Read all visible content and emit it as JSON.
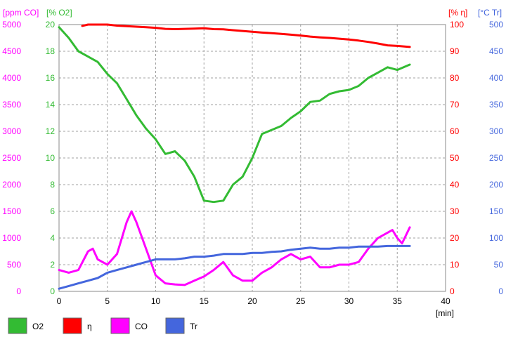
{
  "chart_data": {
    "type": "line",
    "xlabel": "[min]",
    "xlim": [
      0,
      40
    ],
    "x_ticks": [
      0,
      5,
      10,
      15,
      20,
      25,
      30,
      35,
      40
    ],
    "grid": true,
    "legend_placement": "bottom",
    "axes": [
      {
        "id": "co",
        "label": "[ppm CO]",
        "color": "#ff00ff",
        "side": "left-outer",
        "min": 0,
        "max": 5000,
        "ticks": [
          "0",
          "500",
          "1000",
          "1500",
          "2000",
          "2500",
          "3000",
          "3500",
          "4000",
          "4500",
          "5000"
        ]
      },
      {
        "id": "o2",
        "label": "[% O2]",
        "color": "#33bb33",
        "side": "left-inner",
        "min": 0,
        "max": 20,
        "ticks": [
          "0",
          "2",
          "4",
          "6",
          "8",
          "10",
          "12",
          "14",
          "16",
          "18",
          "20"
        ]
      },
      {
        "id": "eta",
        "label": "[% η]",
        "color": "#ff0000",
        "side": "right-inner",
        "min": 0,
        "max": 100,
        "ticks": [
          "0",
          "10",
          "20",
          "30",
          "40",
          "50",
          "60",
          "70",
          "80",
          "90",
          "100"
        ]
      },
      {
        "id": "tr",
        "label": "[°C Tr]",
        "color": "#4466dd",
        "side": "right-outer",
        "min": 0,
        "max": 500,
        "ticks": [
          "0",
          "50",
          "100",
          "150",
          "200",
          "250",
          "300",
          "350",
          "400",
          "450",
          "500"
        ]
      }
    ],
    "series": [
      {
        "name": "O2",
        "axis": "o2",
        "color": "#33bb33",
        "x": [
          0,
          1,
          2,
          3,
          4,
          5,
          6,
          7,
          8,
          9,
          10,
          11,
          12,
          13,
          14,
          15,
          16,
          17,
          18,
          19,
          20,
          21,
          22,
          23,
          24,
          25,
          26,
          27,
          28,
          29,
          30,
          31,
          32,
          33,
          34,
          35,
          36.3
        ],
        "y": [
          19.8,
          19.0,
          18.0,
          17.6,
          17.2,
          16.3,
          15.6,
          14.4,
          13.2,
          12.2,
          11.4,
          10.3,
          10.5,
          9.8,
          8.6,
          6.8,
          6.7,
          6.8,
          8.0,
          8.6,
          10.0,
          11.8,
          12.1,
          12.4,
          13.0,
          13.5,
          14.2,
          14.3,
          14.8,
          15.0,
          15.1,
          15.4,
          16.0,
          16.4,
          16.8,
          16.6,
          17.0
        ]
      },
      {
        "name": "η",
        "axis": "eta",
        "color": "#ff0000",
        "x": [
          2.4,
          3,
          4,
          5,
          6,
          7,
          8,
          9,
          10,
          11,
          12,
          13,
          14,
          15,
          16,
          17,
          18,
          19,
          20,
          21,
          22,
          23,
          24,
          25,
          26,
          27,
          28,
          29,
          30,
          31,
          32,
          33,
          34,
          35,
          36.3
        ],
        "y": [
          99.5,
          100,
          100,
          100,
          99.6,
          99.4,
          99.2,
          99.0,
          98.8,
          98.4,
          98.3,
          98.4,
          98.5,
          98.6,
          98.3,
          98.2,
          97.9,
          97.6,
          97.3,
          97.0,
          96.8,
          96.5,
          96.2,
          95.9,
          95.5,
          95.2,
          95.0,
          94.7,
          94.4,
          94.0,
          93.5,
          92.9,
          92.2,
          92.0,
          91.6
        ]
      },
      {
        "name": "CO",
        "axis": "co",
        "color": "#ff00ff",
        "x": [
          0,
          1,
          2,
          3,
          3.5,
          4,
          5,
          6,
          7,
          7.5,
          8,
          9,
          10,
          11,
          12,
          13,
          14,
          15,
          16,
          17,
          18,
          19,
          20,
          21,
          22,
          23,
          24,
          25,
          26,
          27,
          28,
          29,
          30,
          31,
          32,
          33,
          34,
          34.5,
          35,
          35.5,
          36.3
        ],
        "y": [
          400,
          350,
          400,
          750,
          800,
          600,
          500,
          700,
          1300,
          1500,
          1300,
          800,
          300,
          150,
          130,
          120,
          200,
          280,
          400,
          550,
          300,
          200,
          200,
          350,
          450,
          600,
          700,
          600,
          650,
          450,
          450,
          500,
          500,
          550,
          800,
          1000,
          1100,
          1150,
          1000,
          900,
          1200
        ]
      },
      {
        "name": "Tr",
        "axis": "tr",
        "color": "#4466dd",
        "x": [
          0,
          1,
          2,
          3,
          4,
          5,
          6,
          7,
          8,
          9,
          10,
          11,
          12,
          13,
          14,
          15,
          16,
          17,
          18,
          19,
          20,
          21,
          22,
          23,
          24,
          25,
          26,
          27,
          28,
          29,
          30,
          31,
          32,
          33,
          34,
          35,
          36.3
        ],
        "y": [
          5,
          10,
          15,
          20,
          25,
          35,
          40,
          45,
          50,
          55,
          60,
          60,
          60,
          62,
          65,
          65,
          67,
          70,
          70,
          70,
          72,
          72,
          74,
          75,
          78,
          80,
          82,
          80,
          80,
          82,
          82,
          84,
          84,
          84,
          85,
          85,
          85
        ]
      }
    ]
  }
}
